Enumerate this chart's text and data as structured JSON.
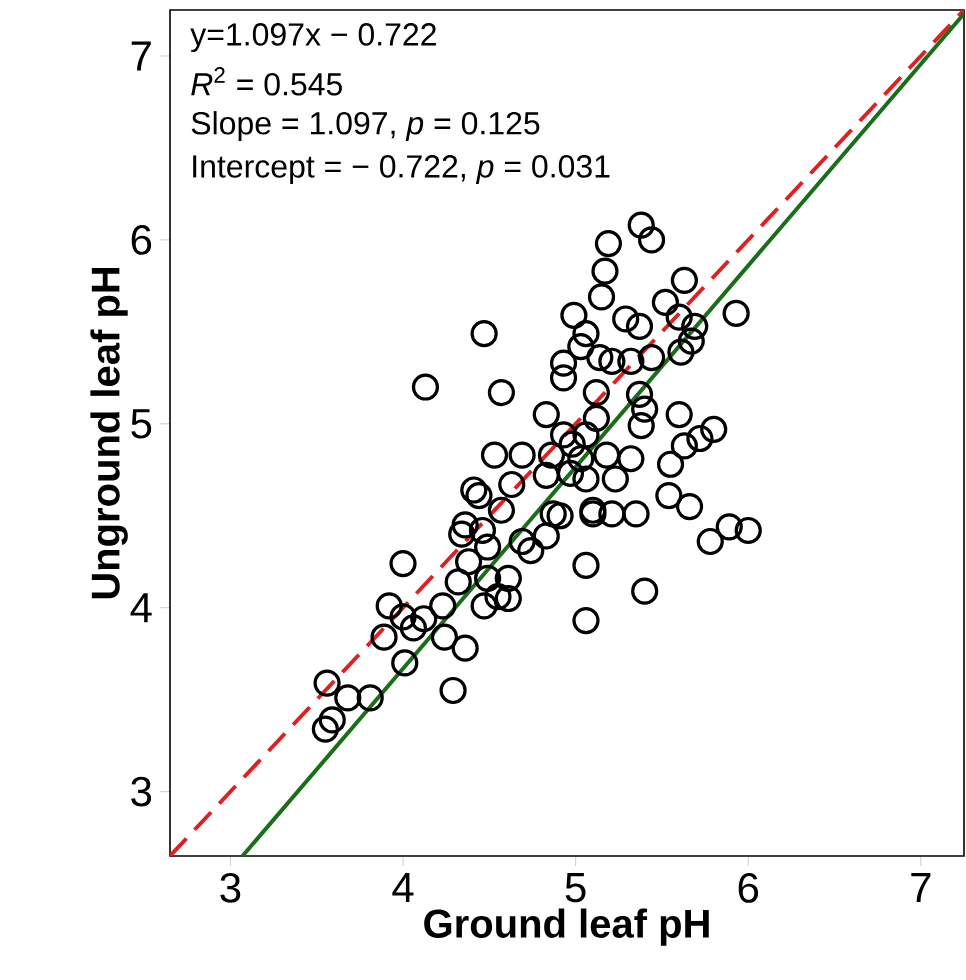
{
  "chart_data": {
    "type": "scatter",
    "xlabel": "Ground leaf pH",
    "ylabel": "Unground leaf pH",
    "xlim": [
      2.65,
      7.25
    ],
    "ylim": [
      2.65,
      7.25
    ],
    "xticks": [
      3,
      4,
      5,
      6,
      7
    ],
    "yticks": [
      3,
      4,
      5,
      6,
      7
    ],
    "grid": false,
    "annotations": [
      "y=1.097x − 0.722",
      "*R*$^{2}$ = 0.545",
      "Slope = 1.097, *p* = 0.125",
      "Intercept = − 0.722, *p* = 0.031"
    ],
    "series": [
      {
        "color": "#000000",
        "marker": "circle",
        "x": [
          3.56,
          3.55,
          3.59,
          3.68,
          3.81,
          4.0,
          3.92,
          3.89,
          4.0,
          4.06,
          4.12,
          4.01,
          4.23,
          4.24,
          4.36,
          4.29,
          4.34,
          4.38,
          4.32,
          4.49,
          4.49,
          4.47,
          4.55,
          4.61,
          4.61,
          4.46,
          4.69,
          4.74,
          4.83,
          4.91,
          5.06,
          5.1,
          5.21,
          5.35,
          5.4,
          5.38,
          5.44,
          5.19,
          5.17,
          5.15,
          4.99,
          5.29,
          5.63,
          5.52,
          5.6,
          5.69,
          5.93,
          5.67,
          5.61,
          4.47,
          5.06,
          5.37,
          5.03,
          4.93,
          4.93,
          5.14,
          5.21,
          5.44,
          5.32,
          4.13,
          4.57,
          5.12,
          5.37,
          5.4,
          4.83,
          5.38,
          5.6,
          5.12,
          5.06,
          4.98,
          4.93,
          5.8,
          5.72,
          5.63,
          4.53,
          4.69,
          4.86,
          5.03,
          5.18,
          5.32,
          5.55,
          4.83,
          4.97,
          5.06,
          5.23,
          4.41,
          4.63,
          4.44,
          5.54,
          5.66,
          4.57,
          4.87,
          5.1,
          5.89,
          4.36,
          5.06,
          6.0,
          5.78
        ],
        "values": [
          3.59,
          3.34,
          3.39,
          3.51,
          3.51,
          4.24,
          4.01,
          3.84,
          3.95,
          3.89,
          3.94,
          3.7,
          4.01,
          3.84,
          3.78,
          3.55,
          4.4,
          4.25,
          4.14,
          4.33,
          4.16,
          4.01,
          4.06,
          4.16,
          4.05,
          4.42,
          4.36,
          4.31,
          4.39,
          4.5,
          4.23,
          4.51,
          4.51,
          4.51,
          4.09,
          6.08,
          6.0,
          5.98,
          5.83,
          5.69,
          5.59,
          5.57,
          5.78,
          5.66,
          5.58,
          5.53,
          5.6,
          5.45,
          5.39,
          5.49,
          5.49,
          5.53,
          5.42,
          5.33,
          5.25,
          5.36,
          5.34,
          5.36,
          5.34,
          5.2,
          5.17,
          5.17,
          5.16,
          5.08,
          5.05,
          4.99,
          5.05,
          5.03,
          4.94,
          4.89,
          4.94,
          4.97,
          4.92,
          4.88,
          4.83,
          4.83,
          4.83,
          4.81,
          4.83,
          4.81,
          4.78,
          4.72,
          4.73,
          4.7,
          4.7,
          4.64,
          4.67,
          4.61,
          4.61,
          4.55,
          4.53,
          4.51,
          4.53,
          4.44,
          4.45,
          3.93,
          4.42,
          4.36
        ]
      },
      {
        "type": "line",
        "color": "#e02020",
        "line_style": "dashed",
        "marker": "none",
        "x": [
          2.65,
          7.25
        ],
        "values": [
          2.65,
          7.25
        ]
      },
      {
        "type": "line",
        "color": "#1a6e1a",
        "line_style": "solid",
        "marker": "none",
        "x": [
          3.07,
          7.25
        ],
        "values": [
          2.65,
          7.23
        ]
      }
    ]
  }
}
